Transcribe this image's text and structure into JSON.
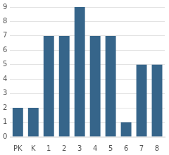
{
  "chart_data": {
    "type": "bar",
    "categories": [
      "PK",
      "K",
      "1",
      "2",
      "3",
      "4",
      "5",
      "6",
      "7",
      "8"
    ],
    "values": [
      2,
      2,
      7,
      7,
      9,
      7,
      7,
      1,
      5,
      5
    ],
    "color": "#36658a",
    "ylim": [
      0,
      9
    ],
    "yticks": [
      0,
      1,
      2,
      3,
      4,
      5,
      6,
      7,
      8,
      9
    ],
    "grid": true
  }
}
